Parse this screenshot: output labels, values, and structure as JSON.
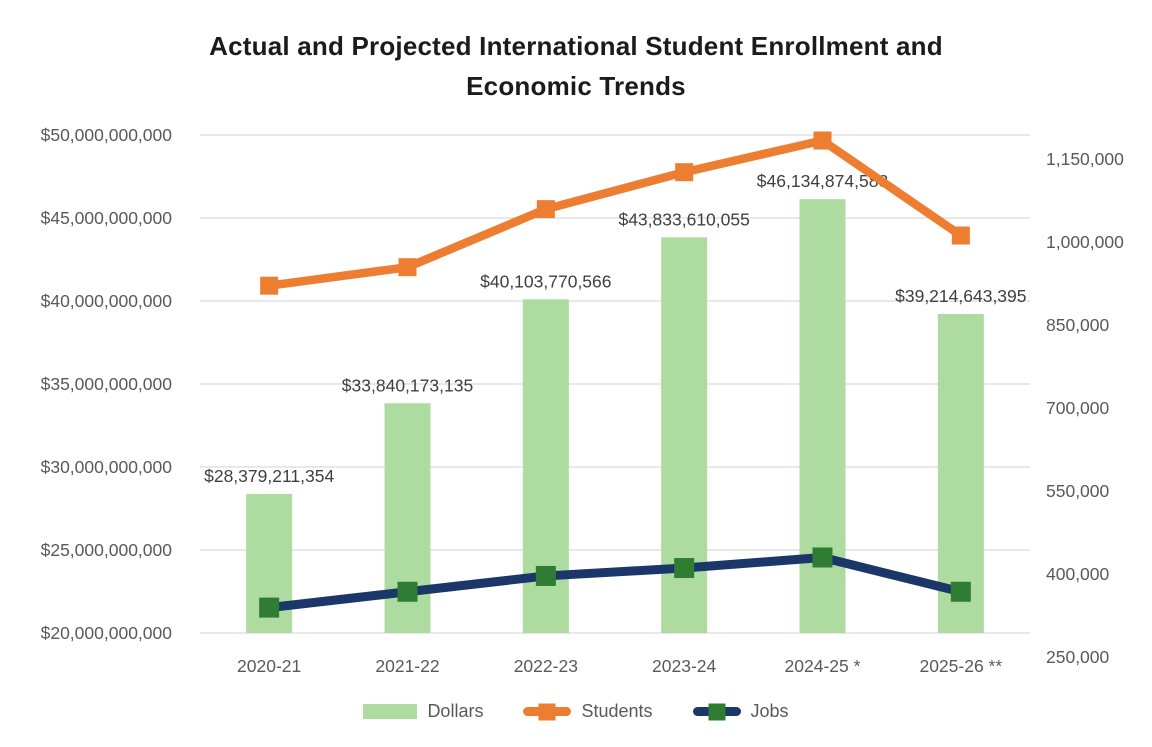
{
  "title": "Actual and Projected International Student Enrollment and Economic Trends",
  "title_lines": [
    "Actual and Projected International Student Enrollment and",
    "Economic Trends"
  ],
  "chart_data": {
    "type": "combo",
    "note": "Students and Jobs values are unlabeled in the image; values estimated from right-axis gridlines.",
    "categories": [
      "2020-21",
      "2021-22",
      "2022-23",
      "2023-24",
      "2024-25 *",
      "2025-26 **"
    ],
    "series": [
      {
        "name": "Dollars",
        "type": "bar",
        "axis": "left",
        "color": "#aedba0",
        "values": [
          28379211354,
          33840173135,
          40103770566,
          43833610055,
          46134874583,
          39214643395
        ],
        "labels": [
          "$28,379,211,354",
          "$33,840,173,135",
          "$40,103,770,566",
          "$43,833,610,055",
          "$46,134,874,583",
          "$39,214,643,395"
        ]
      },
      {
        "name": "Students",
        "type": "line",
        "axis": "right",
        "color": "#ed7d31",
        "marker_color": "#ed7d31",
        "values": [
          910000,
          945000,
          1055000,
          1125000,
          1185000,
          1005000
        ]
      },
      {
        "name": "Jobs",
        "type": "line",
        "axis": "right",
        "color": "#1b3668",
        "marker_color": "#2e7d32",
        "values": [
          300000,
          330000,
          360000,
          375000,
          395000,
          330000
        ]
      }
    ],
    "left_axis": {
      "min": 20000000000,
      "max": 50000000000,
      "step": 5000000000,
      "tick_labels": [
        "$50,000,000,000",
        "$45,000,000,000",
        "$40,000,000,000",
        "$35,000,000,000",
        "$30,000,000,000",
        "$25,000,000,000",
        "$20,000,000,000"
      ]
    },
    "right_axis": {
      "min": 250000,
      "max": 1150000,
      "step": 150000,
      "tick_labels": [
        "1,150,000",
        "1,000,000",
        "850,000",
        "700,000",
        "550,000",
        "400,000",
        "250,000"
      ]
    },
    "grid": true,
    "legend_position": "bottom",
    "colors": {
      "gridline": "#d9d9d9",
      "axis_text": "#595959",
      "data_label_text": "#3f3f3f",
      "background": "#ffffff"
    }
  }
}
